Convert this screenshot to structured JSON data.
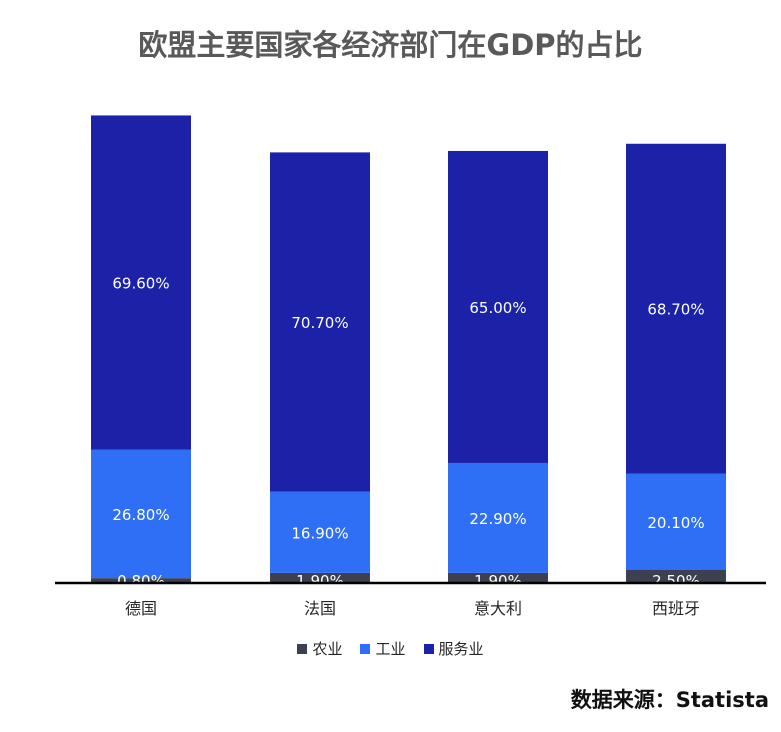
{
  "chart_data": {
    "type": "bar",
    "stacked": true,
    "title": "欧盟主要国家各经济部门在GDP的占比",
    "categories": [
      "德国",
      "法国",
      "意大利",
      "西班牙"
    ],
    "series": [
      {
        "name": "农业",
        "color": "#3b4150",
        "values": [
          0.8,
          1.9,
          1.9,
          2.5
        ],
        "labels": [
          "0.80%",
          "1.90%",
          "1.90%",
          "2.50%"
        ]
      },
      {
        "name": "工业",
        "color": "#2f6ff5",
        "values": [
          26.8,
          16.9,
          22.9,
          20.1
        ],
        "labels": [
          "26.80%",
          "16.90%",
          "22.90%",
          "20.10%"
        ]
      },
      {
        "name": "服务业",
        "color": "#1c22a8",
        "values": [
          69.6,
          70.7,
          65.0,
          68.7
        ],
        "labels": [
          "69.60%",
          "70.70%",
          "65.00%",
          "68.70%"
        ]
      }
    ],
    "ylim": [
      0,
      100
    ],
    "grid": false,
    "legend_position": "bottom"
  },
  "source": "数据来源：Statista"
}
